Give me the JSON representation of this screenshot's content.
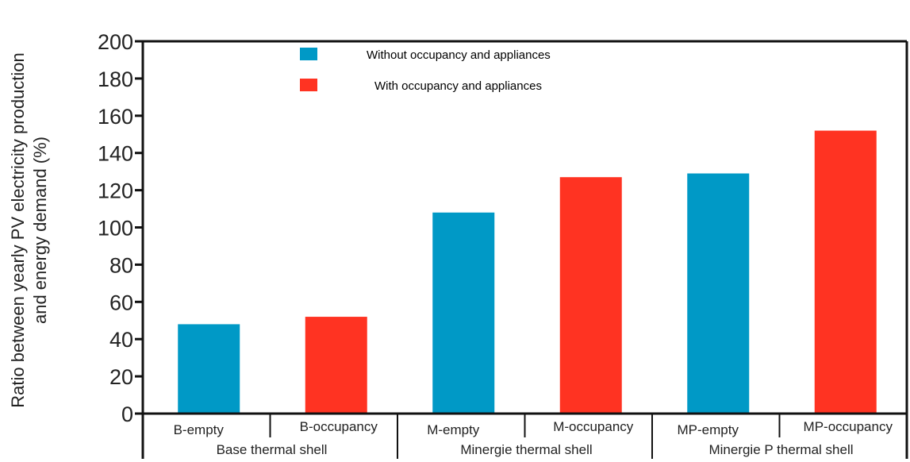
{
  "chart_data": {
    "type": "bar",
    "ylabel_line1": "Ratio between yearly PV electricity production",
    "ylabel_line2": "and energy demand (%)",
    "ylim": [
      0,
      200
    ],
    "yticks": [
      0,
      20,
      40,
      60,
      80,
      100,
      120,
      140,
      160,
      180,
      200
    ],
    "categories": [
      "B-empty",
      "B-occupancy",
      "M-empty",
      "M-occupancy",
      "MP-empty",
      "MP-occupancy"
    ],
    "groups": [
      "Base thermal shell",
      "Minergie thermal shell",
      "Minergie P thermal shell"
    ],
    "series": [
      {
        "name": "Without occupancy and appliances",
        "color": "#0099c6",
        "values": [
          48,
          null,
          108,
          null,
          129,
          null
        ]
      },
      {
        "name": "With occupancy and appliances",
        "color": "#ff3322",
        "values": [
          null,
          52,
          null,
          127,
          null,
          152
        ]
      }
    ],
    "legend_position": "top-center",
    "grid": false
  }
}
